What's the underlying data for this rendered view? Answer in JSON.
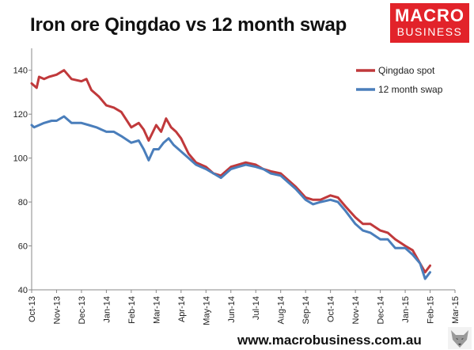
{
  "title": "Iron ore Qingdao vs 12 month swap",
  "logo": {
    "line1": "MACRO",
    "line2": "BUSINESS"
  },
  "footer": {
    "url": "www.macrobusiness.com.au"
  },
  "icons": {
    "logo_icon": "fox-head-icon"
  },
  "chart_data": {
    "type": "line",
    "title": "Iron ore Qingdao vs 12 month swap",
    "xlabel": "",
    "ylabel": "",
    "ylim": [
      40,
      150
    ],
    "yticks": [
      40,
      60,
      80,
      100,
      120,
      140
    ],
    "xticks": [
      "Oct-13",
      "Nov-13",
      "Dec-13",
      "Jan-14",
      "Feb-14",
      "Mar-14",
      "Apr-14",
      "May-14",
      "Jun-14",
      "Jul-14",
      "Aug-14",
      "Sep-14",
      "Oct-14",
      "Nov-14",
      "Dec-14",
      "Jan-15",
      "Feb-15",
      "Mar-15"
    ],
    "grid": false,
    "legend_position": "top-right",
    "series": [
      {
        "name": "Qingdao spot",
        "color": "#c0393b",
        "x": [
          0,
          0.1,
          0.2,
          0.3,
          0.5,
          0.7,
          1.0,
          1.3,
          1.6,
          2.0,
          2.2,
          2.4,
          2.7,
          3.0,
          3.3,
          3.6,
          4.0,
          4.3,
          4.5,
          4.7,
          5.0,
          5.2,
          5.4,
          5.6,
          5.8,
          6.0,
          6.3,
          6.6,
          7.0,
          7.3,
          7.6,
          8.0,
          8.3,
          8.6,
          9.0,
          9.3,
          9.6,
          10.0,
          10.3,
          10.6,
          11.0,
          11.3,
          11.6,
          12.0,
          12.3,
          12.6,
          13.0,
          13.3,
          13.6,
          14.0,
          14.3,
          14.6,
          15.0,
          15.3,
          15.6,
          15.8,
          16.0
        ],
        "values": [
          134,
          133,
          132,
          137,
          136,
          137,
          138,
          140,
          136,
          135,
          136,
          131,
          128,
          124,
          123,
          121,
          114,
          116,
          113,
          108,
          115,
          112,
          118,
          114,
          112,
          109,
          102,
          98,
          96,
          93,
          92,
          96,
          97,
          98,
          97,
          95,
          94,
          93,
          90,
          87,
          82,
          81,
          81,
          83,
          82,
          78,
          73,
          70,
          70,
          67,
          66,
          63,
          60,
          58,
          52,
          48,
          51
        ]
      },
      {
        "name": "12 month swap",
        "color": "#4a7ebb",
        "x": [
          0,
          0.1,
          0.3,
          0.5,
          0.8,
          1.0,
          1.3,
          1.6,
          2.0,
          2.3,
          2.6,
          3.0,
          3.3,
          3.6,
          4.0,
          4.3,
          4.5,
          4.7,
          4.9,
          5.1,
          5.3,
          5.5,
          5.7,
          6.0,
          6.3,
          6.6,
          7.0,
          7.3,
          7.6,
          8.0,
          8.3,
          8.6,
          9.0,
          9.3,
          9.6,
          10.0,
          10.3,
          10.6,
          11.0,
          11.3,
          11.6,
          12.0,
          12.3,
          12.6,
          13.0,
          13.3,
          13.6,
          14.0,
          14.3,
          14.6,
          15.0,
          15.3,
          15.6,
          15.8,
          16.0
        ],
        "values": [
          115,
          114,
          115,
          116,
          117,
          117,
          119,
          116,
          116,
          115,
          114,
          112,
          112,
          110,
          107,
          108,
          104,
          99,
          104,
          104,
          107,
          109,
          106,
          103,
          100,
          97,
          95,
          93,
          91,
          95,
          96,
          97,
          96,
          95,
          93,
          92,
          89,
          86,
          81,
          79,
          80,
          81,
          80,
          76,
          70,
          67,
          66,
          63,
          63,
          59,
          59,
          56,
          52,
          45,
          48
        ]
      }
    ]
  }
}
